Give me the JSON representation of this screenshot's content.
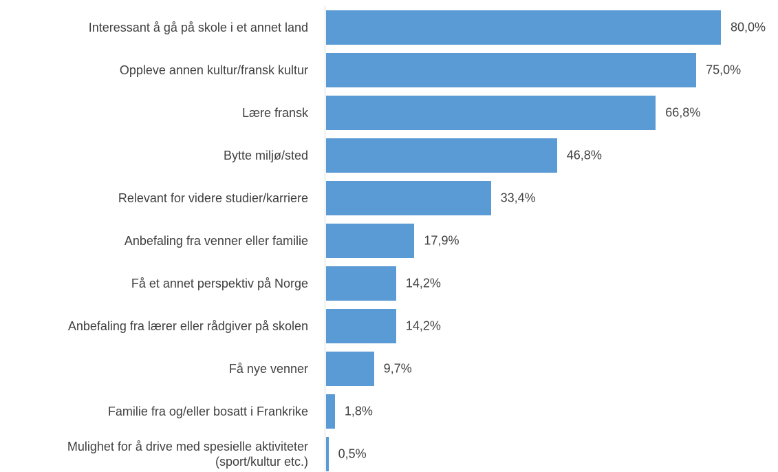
{
  "chart_data": {
    "type": "bar",
    "orientation": "horizontal",
    "categories": [
      "Interessant å gå på skole i et annet land",
      "Oppleve annen kultur/fransk kultur",
      "Lære fransk",
      "Bytte miljø/sted",
      "Relevant for videre studier/karriere",
      "Anbefaling fra venner eller familie",
      "Få et annet perspektiv på Norge",
      "Anbefaling fra lærer eller rådgiver på skolen",
      "Få nye venner",
      "Familie fra og/eller bosatt i Frankrike",
      "Mulighet for å drive med spesielle aktiviteter\n(sport/kultur etc.)"
    ],
    "values": [
      80.0,
      75.0,
      66.8,
      46.8,
      33.4,
      17.9,
      14.2,
      14.2,
      9.7,
      1.8,
      0.5
    ],
    "value_labels": [
      "80,0%",
      "75,0%",
      "66,8%",
      "46,8%",
      "33,4%",
      "17,9%",
      "14,2%",
      "14,2%",
      "9,7%",
      "1,8%",
      "0,5%"
    ],
    "color": "#5b9bd5"
  }
}
